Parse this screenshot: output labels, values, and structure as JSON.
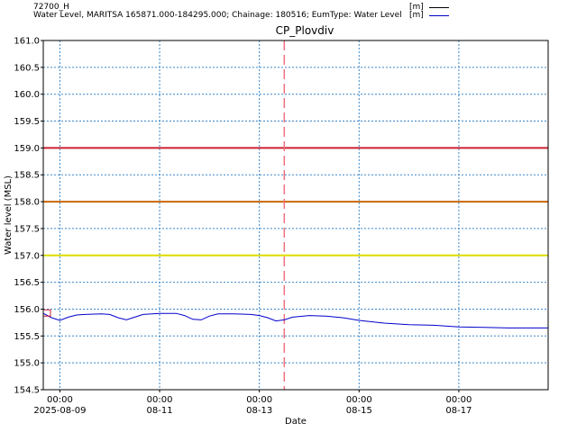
{
  "legend": {
    "row1": {
      "text": "72700_H",
      "unit": "[m]",
      "color": "#000000"
    },
    "row2": {
      "text": "Water Level, MARITSA 165871.000-184295.000; Chainage: 180516; EumType: Water Level",
      "unit": "[m]",
      "color": "#0000cc"
    }
  },
  "chart_data": {
    "type": "line",
    "title": "CP_Plovdiv",
    "xlabel": "Date",
    "ylabel": "Water level (MSL)",
    "ylim": [
      154.5,
      161.0
    ],
    "xlim": [
      "2025-08-08T16:00",
      "2025-08-18T19:00"
    ],
    "grid": true,
    "y_ticks": [
      "154.5",
      "155.0",
      "155.5",
      "156.0",
      "156.5",
      "157.0",
      "157.5",
      "158.0",
      "158.5",
      "159.0",
      "159.5",
      "160.0",
      "160.5",
      "161.0"
    ],
    "x_ticks": [
      {
        "x": "2025-08-09T00:00",
        "time": "00:00",
        "date": "2025-08-09"
      },
      {
        "x": "2025-08-11T00:00",
        "time": "00:00",
        "date": "08-11"
      },
      {
        "x": "2025-08-13T00:00",
        "time": "00:00",
        "date": "08-13"
      },
      {
        "x": "2025-08-15T00:00",
        "time": "00:00",
        "date": "08-15"
      },
      {
        "x": "2025-08-17T00:00",
        "time": "00:00",
        "date": "08-17"
      }
    ],
    "thresholds": [
      {
        "y": 159.0,
        "color": "#cc2233"
      },
      {
        "y": 158.0,
        "color": "#cc6600"
      },
      {
        "y": 157.0,
        "color": "#dddd00"
      }
    ],
    "current_time": {
      "x": "2025-08-13T12:00",
      "color": "#f07080"
    },
    "marker": {
      "x": "2025-08-08T16:00",
      "y": 155.92,
      "color": "#cc2233"
    },
    "series": [
      {
        "color": "#0000cc",
        "points": [
          [
            "2025-08-08T16:00",
            155.92
          ],
          [
            "2025-08-08T20:00",
            155.84
          ],
          [
            "2025-08-09T00:00",
            155.79
          ],
          [
            "2025-08-09T04:00",
            155.85
          ],
          [
            "2025-08-09T08:00",
            155.89
          ],
          [
            "2025-08-09T12:00",
            155.9
          ],
          [
            "2025-08-09T20:00",
            155.91
          ],
          [
            "2025-08-10T00:00",
            155.9
          ],
          [
            "2025-08-10T04:00",
            155.84
          ],
          [
            "2025-08-10T08:00",
            155.8
          ],
          [
            "2025-08-10T12:00",
            155.85
          ],
          [
            "2025-08-10T16:00",
            155.9
          ],
          [
            "2025-08-11T00:00",
            155.92
          ],
          [
            "2025-08-11T08:00",
            155.92
          ],
          [
            "2025-08-11T12:00",
            155.88
          ],
          [
            "2025-08-11T16:00",
            155.81
          ],
          [
            "2025-08-11T20:00",
            155.8
          ],
          [
            "2025-08-12T00:00",
            155.87
          ],
          [
            "2025-08-12T04:00",
            155.91
          ],
          [
            "2025-08-12T12:00",
            155.91
          ],
          [
            "2025-08-12T20:00",
            155.9
          ],
          [
            "2025-08-13T00:00",
            155.88
          ],
          [
            "2025-08-13T04:00",
            155.84
          ],
          [
            "2025-08-13T08:00",
            155.78
          ],
          [
            "2025-08-13T12:00",
            155.8
          ],
          [
            "2025-08-13T16:00",
            155.85
          ],
          [
            "2025-08-14T00:00",
            155.88
          ],
          [
            "2025-08-14T08:00",
            155.87
          ],
          [
            "2025-08-14T16:00",
            155.84
          ],
          [
            "2025-08-15T00:00",
            155.79
          ],
          [
            "2025-08-15T12:00",
            155.74
          ],
          [
            "2025-08-16T00:00",
            155.71
          ],
          [
            "2025-08-16T12:00",
            155.7
          ],
          [
            "2025-08-17T00:00",
            155.67
          ],
          [
            "2025-08-17T12:00",
            155.66
          ],
          [
            "2025-08-18T00:00",
            155.65
          ],
          [
            "2025-08-18T19:00",
            155.65
          ]
        ]
      }
    ]
  }
}
